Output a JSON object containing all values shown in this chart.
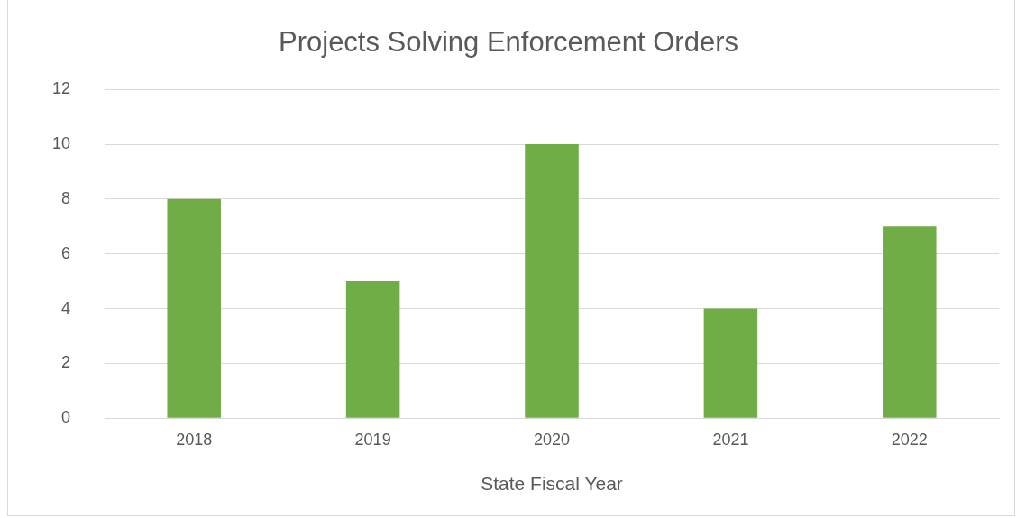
{
  "chart_data": {
    "type": "bar",
    "title": "Projects Solving Enforcement Orders",
    "xlabel": "State Fiscal Year",
    "categories": [
      "2018",
      "2019",
      "2020",
      "2021",
      "2022"
    ],
    "values": [
      8,
      5,
      10,
      4,
      7
    ],
    "color": "#70ad47",
    "ylim": [
      0,
      12
    ],
    "yticks": [
      0,
      2,
      4,
      6,
      8,
      10,
      12
    ],
    "grid": "y",
    "legend": false
  }
}
